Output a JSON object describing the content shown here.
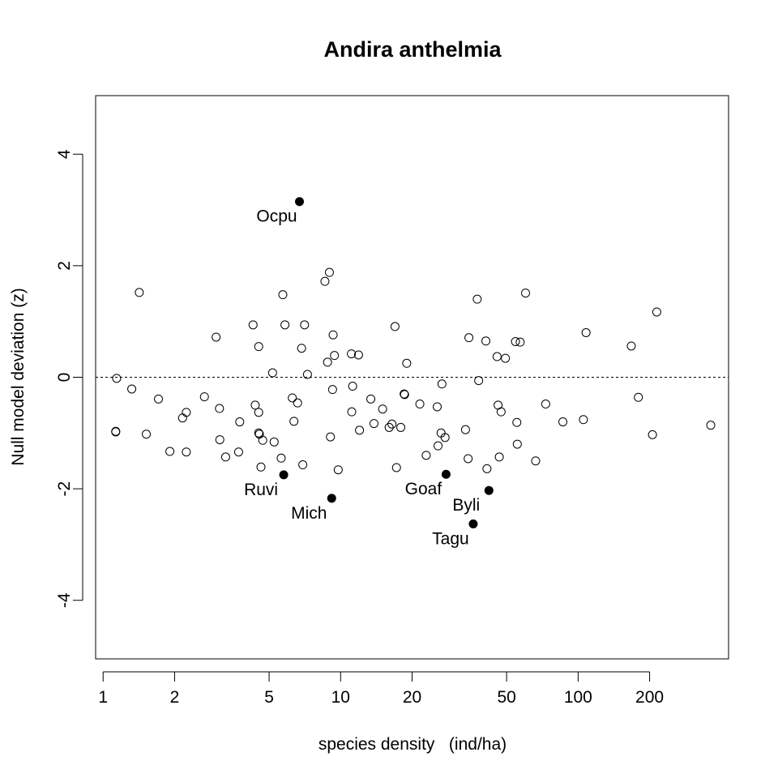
{
  "chart_data": {
    "type": "scatter",
    "title": "Andira anthelmia",
    "xlabel": "species density   (ind/ha)",
    "ylabel": "Null model deviation (z)",
    "x_scale": "log",
    "xlim": [
      0.93,
      430
    ],
    "ylim": [
      -5.05,
      5.05
    ],
    "x_ticks": [
      1,
      2,
      5,
      10,
      20,
      50,
      100,
      200
    ],
    "x_tick_labels": [
      "1",
      "2",
      "5",
      "10",
      "20",
      "50",
      "100",
      "200"
    ],
    "y_ticks": [
      -4,
      -2,
      0,
      2,
      4
    ],
    "y_tick_labels": [
      "-4",
      "-2",
      "0",
      "2",
      "4"
    ],
    "reference_line": {
      "y": 0,
      "style": "dotted"
    },
    "grid": false,
    "series": [
      {
        "marker": "open-circle",
        "points": [
          [
            1.14,
            -0.02
          ],
          [
            1.13,
            -0.97
          ],
          [
            1.13,
            -0.98
          ],
          [
            1.32,
            -0.21
          ],
          [
            1.42,
            1.52
          ],
          [
            1.52,
            -1.02
          ],
          [
            1.71,
            -0.39
          ],
          [
            1.91,
            -1.33
          ],
          [
            2.16,
            -0.73
          ],
          [
            2.24,
            -0.63
          ],
          [
            2.24,
            -1.34
          ],
          [
            2.67,
            -0.35
          ],
          [
            2.99,
            0.72
          ],
          [
            3.09,
            -0.56
          ],
          [
            3.1,
            -1.12
          ],
          [
            3.28,
            -1.43
          ],
          [
            3.72,
            -1.34
          ],
          [
            3.76,
            -0.8
          ],
          [
            4.28,
            0.94
          ],
          [
            4.37,
            -0.5
          ],
          [
            4.52,
            0.55
          ],
          [
            4.52,
            -0.63
          ],
          [
            4.52,
            -1.0
          ],
          [
            4.55,
            -1.02
          ],
          [
            4.62,
            -1.61
          ],
          [
            4.7,
            -1.13
          ],
          [
            5.17,
            0.08
          ],
          [
            5.25,
            -1.16
          ],
          [
            5.62,
            -1.45
          ],
          [
            5.71,
            1.48
          ],
          [
            5.83,
            0.94
          ],
          [
            6.26,
            -0.37
          ],
          [
            6.36,
            -0.79
          ],
          [
            6.59,
            -0.46
          ],
          [
            6.85,
            0.52
          ],
          [
            6.93,
            -1.57
          ],
          [
            7.05,
            0.94
          ],
          [
            7.25,
            0.05
          ],
          [
            8.59,
            1.72
          ],
          [
            8.81,
            0.27
          ],
          [
            8.97,
            1.88
          ],
          [
            9.06,
            -1.07
          ],
          [
            9.25,
            -0.22
          ],
          [
            9.3,
            0.76
          ],
          [
            9.42,
            0.39
          ],
          [
            9.77,
            -1.66
          ],
          [
            11.1,
            0.42
          ],
          [
            11.14,
            -0.62
          ],
          [
            11.24,
            -0.16
          ],
          [
            11.9,
            0.4
          ],
          [
            12.01,
            -0.95
          ],
          [
            13.4,
            -0.39
          ],
          [
            13.82,
            -0.83
          ],
          [
            15.03,
            -0.57
          ],
          [
            16.01,
            -0.9
          ],
          [
            16.45,
            -0.84
          ],
          [
            16.94,
            0.91
          ],
          [
            17.19,
            -1.62
          ],
          [
            17.92,
            -0.9
          ],
          [
            18.51,
            -0.3
          ],
          [
            18.59,
            -0.31
          ],
          [
            18.98,
            0.25
          ],
          [
            21.56,
            -0.48
          ],
          [
            22.93,
            -1.4
          ],
          [
            25.51,
            -0.53
          ],
          [
            25.72,
            -1.23
          ],
          [
            26.48,
            -1.0
          ],
          [
            26.71,
            -0.12
          ],
          [
            27.53,
            -1.08
          ],
          [
            33.56,
            -0.94
          ],
          [
            34.43,
            -1.46
          ],
          [
            34.68,
            0.71
          ],
          [
            37.6,
            1.4
          ],
          [
            38.13,
            -0.06
          ],
          [
            40.89,
            0.65
          ],
          [
            41.32,
            -1.64
          ],
          [
            45.58,
            0.37
          ],
          [
            46.03,
            -0.5
          ],
          [
            46.56,
            -1.43
          ],
          [
            47.4,
            -0.62
          ],
          [
            49.41,
            0.34
          ],
          [
            54.48,
            0.64
          ],
          [
            55.21,
            -0.81
          ],
          [
            55.46,
            -1.2
          ],
          [
            57.02,
            0.63
          ],
          [
            60.08,
            1.51
          ],
          [
            66.25,
            -1.5
          ],
          [
            73.04,
            -0.48
          ],
          [
            86.25,
            -0.8
          ],
          [
            105.27,
            -0.76
          ],
          [
            108.01,
            0.8
          ],
          [
            167.44,
            0.56
          ],
          [
            179.32,
            -0.36
          ],
          [
            205.62,
            -1.03
          ],
          [
            214.33,
            1.17
          ],
          [
            361.87,
            -0.86
          ]
        ]
      },
      {
        "marker": "filled-circle",
        "points": [
          {
            "x": 6.71,
            "y": 3.15,
            "label": "Ocpu"
          },
          {
            "x": 5.76,
            "y": -1.75,
            "label": "Ruvi"
          },
          {
            "x": 9.17,
            "y": -2.17,
            "label": "Mich"
          },
          {
            "x": 27.8,
            "y": -1.74,
            "label": "Goaf"
          },
          {
            "x": 42.12,
            "y": -2.03,
            "label": "Byli"
          },
          {
            "x": 36.17,
            "y": -2.63,
            "label": "Tagu"
          }
        ]
      }
    ]
  }
}
